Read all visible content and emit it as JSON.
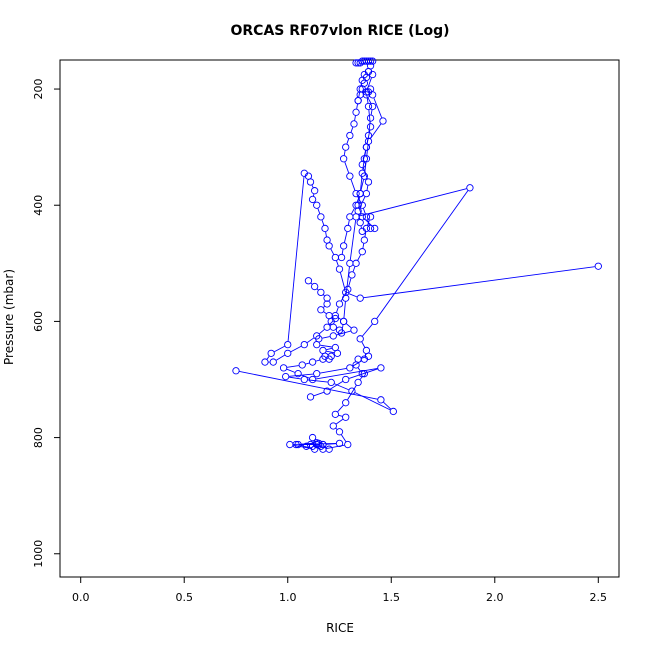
{
  "chart_data": {
    "type": "line",
    "title": "ORCAS RF07vlon RICE (Log)",
    "xlabel": "RICE",
    "ylabel": "Pressure (mbar)",
    "xlim": [
      -0.1,
      2.6
    ],
    "ylim": [
      1040,
      150
    ],
    "y_reversed": true,
    "x_ticks": [
      "0.0",
      "0.5",
      "1.0",
      "1.5",
      "2.0",
      "2.5"
    ],
    "x_tick_values": [
      0.0,
      0.5,
      1.0,
      1.5,
      2.0,
      2.5
    ],
    "y_ticks": [
      "200",
      "400",
      "600",
      "800",
      "1000"
    ],
    "y_tick_values": [
      200,
      400,
      600,
      800,
      1000
    ],
    "grid": false,
    "legend": "none",
    "series_color": "#0000ff",
    "series": [
      {
        "x": [
          1.2,
          1.16,
          1.14,
          1.12,
          1.14,
          1.11,
          1.15,
          1.17,
          1.14,
          1.05,
          1.13,
          1.01,
          1.25,
          1.17,
          1.04,
          1.09,
          1.12,
          1.17,
          1.29,
          1.25,
          1.22,
          1.28,
          1.23,
          1.28,
          1.34,
          1.37,
          1.36,
          1.33,
          1.34,
          1.39
        ],
        "y": [
          820,
          815,
          812,
          800,
          812,
          812,
          810,
          812,
          809,
          812,
          820,
          812,
          810,
          812,
          812,
          815,
          815,
          820,
          812,
          790,
          780,
          765,
          760,
          740,
          705,
          690,
          690,
          675,
          665,
          660
        ]
      },
      {
        "x": [
          1.11,
          1.19,
          1.28,
          1.45,
          1.12,
          1.05,
          0.98,
          1.07,
          1.12,
          1.17,
          1.2,
          1.18,
          1.21,
          1.24,
          1.17,
          1.23,
          1.14,
          1.15,
          1.22,
          1.32,
          1.27,
          1.23,
          1.25,
          1.29,
          1.31,
          1.33,
          1.36,
          1.37,
          1.38,
          1.4
        ],
        "y": [
          730,
          720,
          700,
          680,
          700,
          690,
          680,
          675,
          670,
          665,
          665,
          660,
          660,
          655,
          650,
          645,
          640,
          630,
          625,
          615,
          600,
          590,
          570,
          545,
          520,
          500,
          480,
          460,
          440,
          420
        ]
      },
      {
        "x": [
          0.75,
          1.45,
          1.51,
          1.31,
          1.21,
          1.08,
          0.99,
          1.14,
          1.3,
          1.37,
          1.38,
          1.35,
          1.42,
          1.88,
          1.33,
          1.3,
          1.28,
          1.27,
          1.26,
          1.25,
          1.22,
          1.21,
          1.2,
          1.16,
          1.19,
          1.19,
          1.16,
          1.13,
          1.1
        ],
        "y": [
          685,
          735,
          755,
          720,
          705,
          700,
          695,
          690,
          680,
          665,
          650,
          630,
          600,
          370,
          420,
          500,
          560,
          600,
          620,
          615,
          610,
          600,
          590,
          580,
          570,
          560,
          550,
          540,
          530
        ]
      },
      {
        "x": [
          2.5,
          1.35,
          1.28,
          1.25,
          1.23,
          1.2,
          1.19,
          1.18,
          1.16,
          1.14,
          1.12,
          1.13,
          1.11,
          1.1,
          1.08,
          1.0,
          0.92,
          0.89,
          0.93,
          1.0,
          1.08,
          1.14,
          1.19,
          1.23
        ],
        "y": [
          505,
          560,
          550,
          510,
          490,
          470,
          460,
          440,
          420,
          400,
          390,
          375,
          360,
          350,
          345,
          640,
          655,
          670,
          670,
          655,
          640,
          625,
          610,
          595
        ]
      },
      {
        "x": [
          1.4,
          1.38,
          1.36,
          1.33,
          1.3,
          1.27,
          1.28,
          1.3,
          1.32,
          1.33,
          1.34,
          1.35,
          1.36,
          1.37,
          1.39,
          1.41,
          1.38,
          1.39,
          1.4,
          1.38,
          1.36,
          1.39,
          1.38,
          1.34,
          1.35,
          1.36
        ],
        "y": [
          440,
          420,
          400,
          380,
          350,
          320,
          300,
          280,
          260,
          240,
          220,
          200,
          185,
          175,
          170,
          175,
          205,
          230,
          265,
          300,
          330,
          360,
          380,
          410,
          430,
          445
        ]
      },
      {
        "x": [
          1.42,
          1.36,
          1.34,
          1.35,
          1.36,
          1.37,
          1.38,
          1.39,
          1.4,
          1.41,
          1.38,
          1.39,
          1.4,
          1.41,
          1.46,
          1.39,
          1.38,
          1.37,
          1.35,
          1.33,
          1.3,
          1.29,
          1.27,
          1.26
        ],
        "y": [
          440,
          420,
          400,
          380,
          345,
          320,
          300,
          280,
          250,
          230,
          210,
          205,
          200,
          210,
          255,
          290,
          320,
          350,
          380,
          400,
          420,
          440,
          470,
          490
        ]
      },
      {
        "x": [
          1.33,
          1.34,
          1.35,
          1.36,
          1.37,
          1.38,
          1.39,
          1.4,
          1.41,
          1.4,
          1.39,
          1.38,
          1.37,
          1.36,
          1.35,
          1.34
        ],
        "y": [
          155,
          155,
          155,
          152,
          152,
          152,
          152,
          152,
          152,
          160,
          170,
          180,
          190,
          200,
          210,
          220
        ]
      }
    ]
  }
}
